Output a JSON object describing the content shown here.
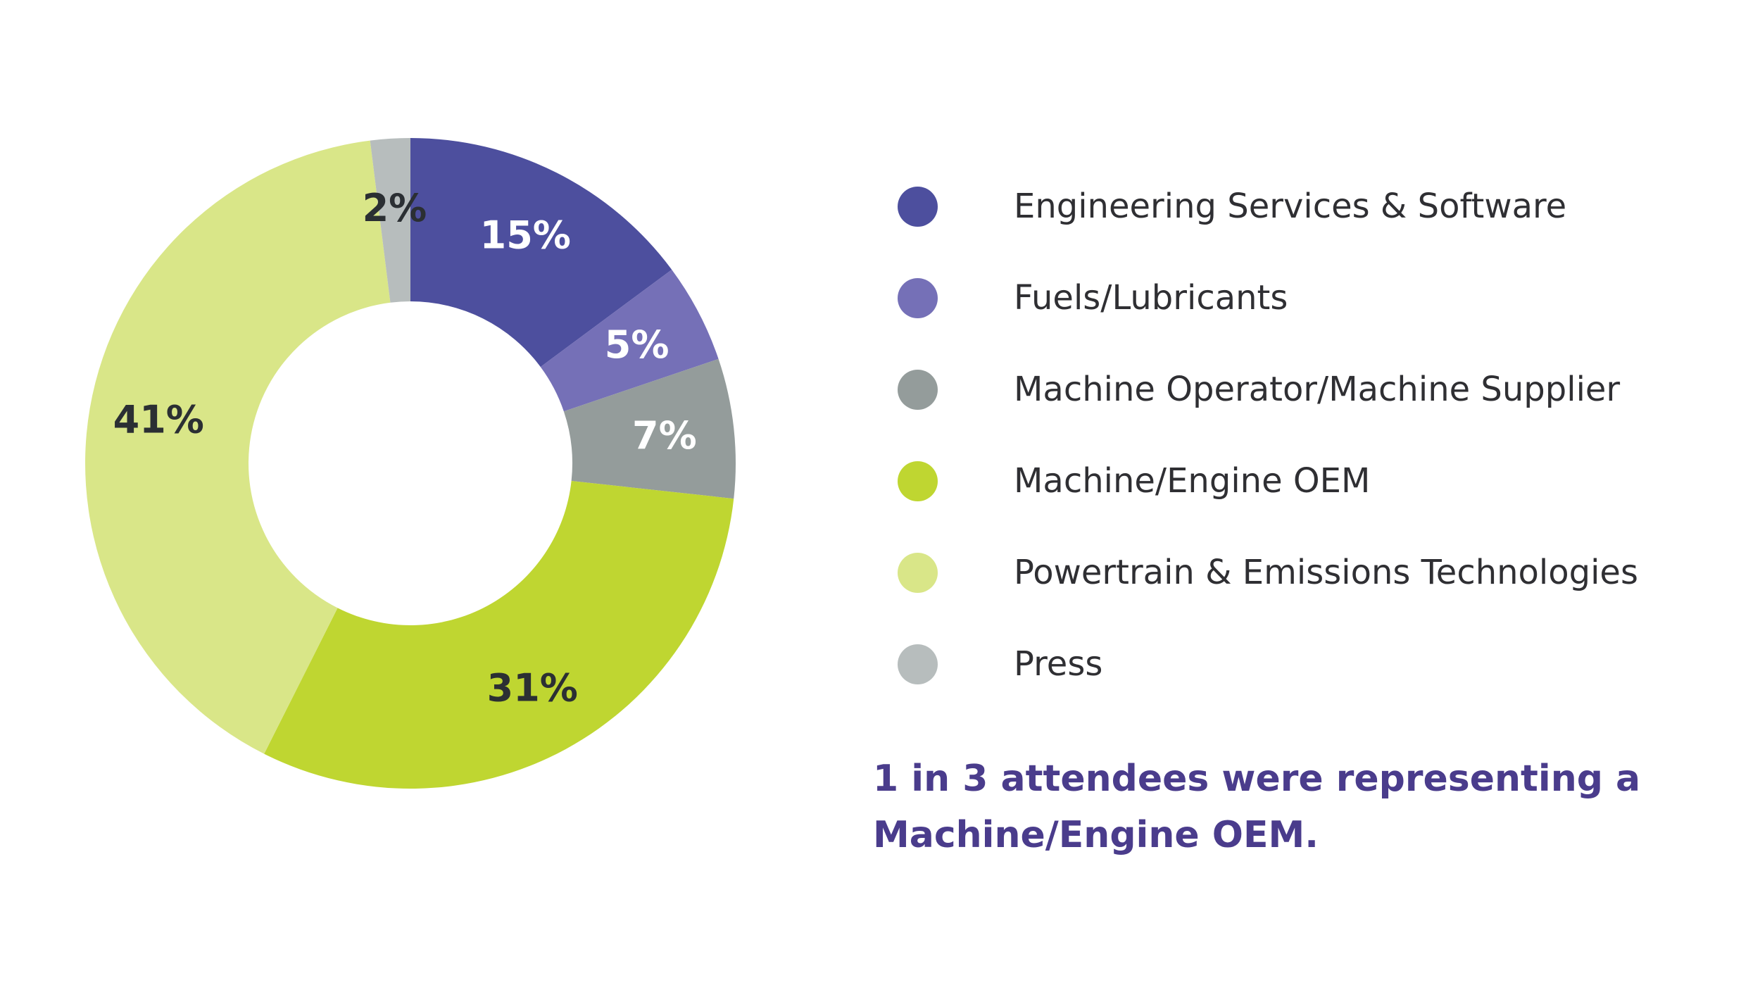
{
  "chart_data": {
    "type": "pie",
    "donut": true,
    "legend_position": "right",
    "categories": [
      "Engineering Services & Software",
      "Fuels/Lubricants",
      "Machine Operator/Machine Supplier",
      "Machine/Engine OEM",
      "Powertrain & Emissions Technologies",
      "Press"
    ],
    "values": [
      15,
      5,
      7,
      31,
      41,
      2
    ],
    "data_labels": [
      "15%",
      "5%",
      "7%",
      "31%",
      "41%",
      "2%"
    ],
    "colors": [
      "#4d4f9e",
      "#7570b7",
      "#949c9b",
      "#bfd631",
      "#d9e688",
      "#b7bdbd"
    ],
    "label_colors": [
      "#ffffff",
      "#ffffff",
      "#ffffff",
      "#2b2f33",
      "#2b2f33",
      "#2b2f33"
    ]
  },
  "callout": {
    "text": "1 in 3 attendees were representing a Machine/Engine OEM."
  }
}
